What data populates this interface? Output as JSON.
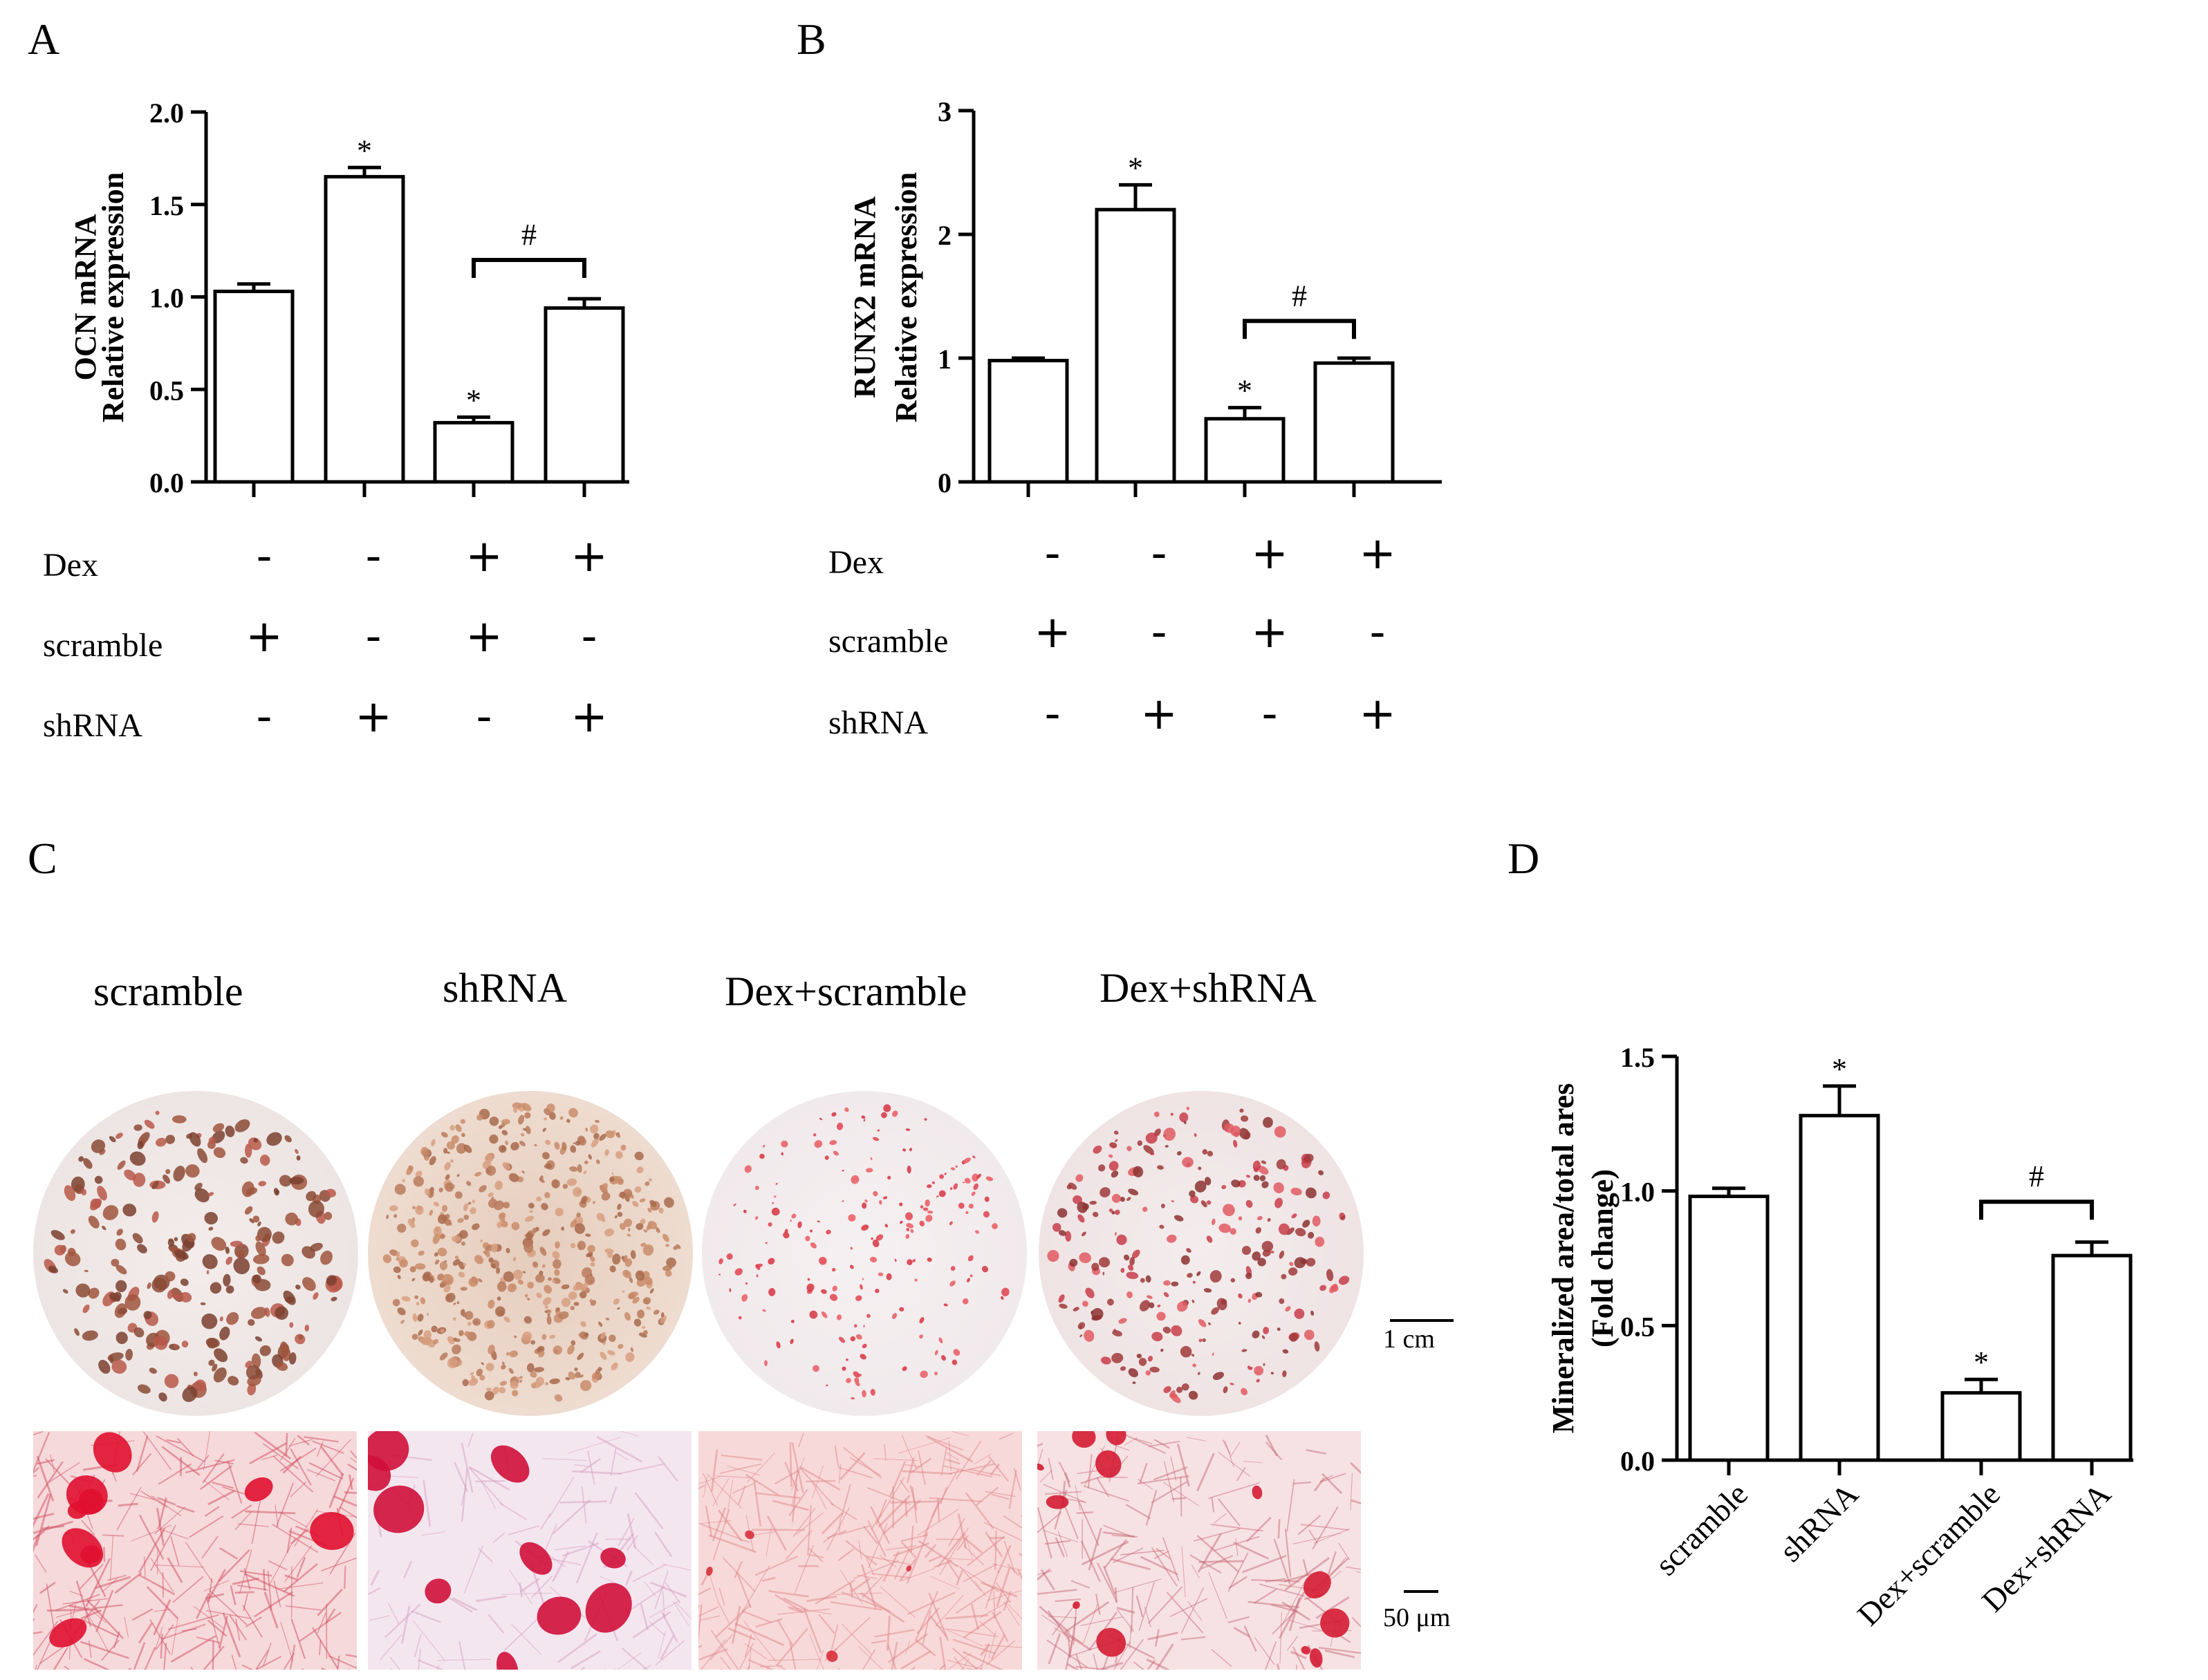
{
  "panels": {
    "a": "A",
    "b": "B",
    "c": "C",
    "d": "D"
  },
  "condition_table": {
    "rows": [
      {
        "label": "Dex",
        "signs": [
          "-",
          "-",
          "+",
          "+"
        ]
      },
      {
        "label": "scramble",
        "signs": [
          "+",
          "-",
          "+",
          "-"
        ]
      },
      {
        "label": "shRNA",
        "signs": [
          "-",
          "+",
          "-",
          "+"
        ]
      }
    ]
  },
  "photos": {
    "labels": [
      "scramble",
      "shRNA",
      "Dex+scramble",
      "Dex+shRNA"
    ],
    "scale_dish": "1 cm",
    "scale_micro": "50 μm"
  },
  "chart_data": [
    {
      "id": "A",
      "type": "bar",
      "ylabel_lines": [
        "OCN mRNA",
        "Relative expression"
      ],
      "ylim": [
        0,
        2.0
      ],
      "ticks": [
        0,
        0.5,
        1.0,
        1.5,
        2.0
      ],
      "tick_labels": [
        "0.0",
        "0.5",
        "1.0",
        "1.5",
        "2.0"
      ],
      "values": [
        1.03,
        1.65,
        0.32,
        0.94
      ],
      "errors": [
        0.04,
        0.05,
        0.03,
        0.05
      ],
      "markers": [
        "",
        "*",
        "*",
        ""
      ],
      "bracket": {
        "from": 2,
        "to": 3,
        "label": "#",
        "y": 1.2
      }
    },
    {
      "id": "B",
      "type": "bar",
      "ylabel_lines": [
        "RUNX2  mRNA",
        "Relative expression"
      ],
      "ylim": [
        0,
        3
      ],
      "ticks": [
        0,
        1,
        2,
        3
      ],
      "tick_labels": [
        "0",
        "1",
        "2",
        "3"
      ],
      "values": [
        0.98,
        2.2,
        0.51,
        0.96
      ],
      "errors": [
        0.02,
        0.2,
        0.09,
        0.04
      ],
      "markers": [
        "",
        "*",
        "*",
        ""
      ],
      "bracket": {
        "from": 2,
        "to": 3,
        "label": "#",
        "y": 1.3
      }
    },
    {
      "id": "D",
      "type": "bar",
      "ylabel_lines": [
        "Mineralized area/total ares",
        "(Fold change)"
      ],
      "ylim": [
        0,
        1.5
      ],
      "ticks": [
        0,
        0.5,
        1.0,
        1.5
      ],
      "tick_labels": [
        "0.0",
        "0.5",
        "1.0",
        "1.5"
      ],
      "categories": [
        "scramble",
        "shRNA",
        "Dex+scramble",
        "Dex+shRNA"
      ],
      "values": [
        0.98,
        1.28,
        0.25,
        0.76
      ],
      "errors": [
        0.03,
        0.11,
        0.05,
        0.05
      ],
      "markers": [
        "",
        "*",
        "*",
        ""
      ],
      "bracket": {
        "from": 2,
        "to": 3,
        "label": "#",
        "y": 0.96
      }
    }
  ]
}
